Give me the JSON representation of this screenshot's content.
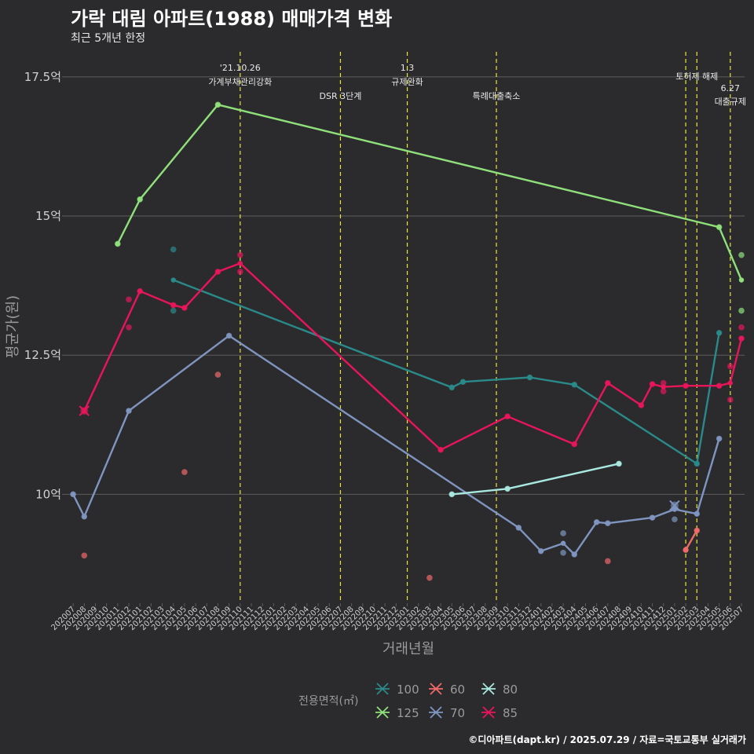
{
  "title": "가락 대림 아파트(1988) 매매가격 변화",
  "subtitle": "최근 5개년 한정",
  "caption": "©디아파트(dapt.kr) / 2025.07.29 / 자료=국토교통부 실거래가",
  "colors": {
    "background": "#2b2b2d",
    "grid": "#5c5c5c",
    "event_line": "#e8e83a",
    "100": "#2a8a8a",
    "125": "#8fe07a",
    "60": "#f06a6a",
    "70": "#7f95c0",
    "80": "#a8e8e0",
    "85": "#e8155a"
  },
  "chart_data": {
    "type": "line",
    "title": "가락 대림 아파트(1988) 매매가격 변화",
    "subtitle": "최근 5개년 한정",
    "xlabel": "거래년월",
    "ylabel": "평균가(원)",
    "ylim": [
      8.1,
      17.95
    ],
    "y_ticks": [
      {
        "value": 10,
        "label": "10억"
      },
      {
        "value": 12.5,
        "label": "12.5억"
      },
      {
        "value": 15,
        "label": "15억"
      },
      {
        "value": 17.5,
        "label": "17.5억"
      }
    ],
    "grid": true,
    "legend_title": "전용면적(㎡)",
    "legend_position": "bottom",
    "categories": [
      "202007",
      "202008",
      "202009",
      "202010",
      "202011",
      "202012",
      "202101",
      "202102",
      "202103",
      "202104",
      "202105",
      "202106",
      "202107",
      "202108",
      "202109",
      "202110",
      "202111",
      "202112",
      "202201",
      "202202",
      "202203",
      "202204",
      "202205",
      "202206",
      "202207",
      "202208",
      "202209",
      "202210",
      "202211",
      "202212",
      "202301",
      "202302",
      "202303",
      "202304",
      "202305",
      "202306",
      "202307",
      "202308",
      "202309",
      "202310",
      "202311",
      "202312",
      "202401",
      "202402",
      "202403",
      "202404",
      "202405",
      "202406",
      "202407",
      "202408",
      "202409",
      "202410",
      "202411",
      "202412",
      "202501",
      "202502",
      "202503",
      "202504",
      "202505",
      "202506",
      "202507"
    ],
    "events": [
      {
        "x": "202110",
        "lines": [
          "'21.10.26",
          "가계부채관리강화"
        ]
      },
      {
        "x": "202207",
        "lines": [
          "DSR 3단계"
        ]
      },
      {
        "x": "202301",
        "lines": [
          "1.3",
          "규제완화"
        ]
      },
      {
        "x": "202309",
        "lines": [
          "특례대출축소"
        ]
      },
      {
        "x": "202502",
        "lines": []
      },
      {
        "x": "202503",
        "lines": [
          "토허제 해제"
        ]
      },
      {
        "x": "202506",
        "lines": [
          "6.27",
          "대출규제"
        ]
      }
    ],
    "series": [
      {
        "name": "100",
        "line": [
          [
            "202104",
            13.85
          ],
          [
            "202305",
            11.92
          ],
          [
            "202306",
            12.02
          ],
          [
            "202312",
            12.1
          ],
          [
            "202404",
            11.97
          ],
          [
            "202503",
            10.55
          ],
          [
            "202505",
            12.9
          ]
        ],
        "points": [
          [
            "202104",
            14.4
          ],
          [
            "202104",
            13.3
          ],
          [
            "202305",
            11.92
          ],
          [
            "202306",
            12.02
          ],
          [
            "202312",
            12.1
          ],
          [
            "202404",
            11.97
          ],
          [
            "202503",
            10.55
          ],
          [
            "202505",
            12.9
          ]
        ],
        "cross": []
      },
      {
        "name": "125",
        "line": [
          [
            "202011",
            14.5
          ],
          [
            "202101",
            15.3
          ],
          [
            "202108",
            17.0
          ],
          [
            "202505",
            14.8
          ],
          [
            "202507",
            13.85
          ]
        ],
        "points": [
          [
            "202011",
            14.5
          ],
          [
            "202101",
            15.3
          ],
          [
            "202108",
            17.0
          ],
          [
            "202505",
            14.8
          ],
          [
            "202507",
            14.3
          ],
          [
            "202507",
            13.3
          ]
        ],
        "cross": []
      },
      {
        "name": "60",
        "line": [
          [
            "202502",
            9.0
          ],
          [
            "202503",
            9.35
          ]
        ],
        "points": [
          [
            "202008",
            8.9
          ],
          [
            "202105",
            10.4
          ],
          [
            "202108",
            12.15
          ],
          [
            "202303",
            8.5
          ],
          [
            "202407",
            8.8
          ],
          [
            "202502",
            9.0
          ],
          [
            "202503",
            9.35
          ]
        ],
        "cross": []
      },
      {
        "name": "70",
        "line": [
          [
            "202007",
            10.0
          ],
          [
            "202008",
            9.6
          ],
          [
            "202012",
            11.5
          ],
          [
            "202109",
            12.85
          ],
          [
            "202311",
            9.4
          ],
          [
            "202401",
            8.98
          ],
          [
            "202403",
            9.12
          ],
          [
            "202404",
            8.92
          ],
          [
            "202406",
            9.5
          ],
          [
            "202407",
            9.48
          ],
          [
            "202411",
            9.58
          ],
          [
            "202501",
            9.73
          ],
          [
            "202503",
            9.65
          ],
          [
            "202505",
            11.0
          ]
        ],
        "points": [
          [
            "202007",
            10.0
          ],
          [
            "202008",
            9.6
          ],
          [
            "202012",
            11.5
          ],
          [
            "202109",
            12.85
          ],
          [
            "202311",
            9.4
          ],
          [
            "202401",
            8.98
          ],
          [
            "202403",
            9.3
          ],
          [
            "202403",
            8.95
          ],
          [
            "202404",
            8.92
          ],
          [
            "202406",
            9.5
          ],
          [
            "202407",
            9.48
          ],
          [
            "202411",
            9.58
          ],
          [
            "202501",
            9.55
          ],
          [
            "202503",
            9.65
          ],
          [
            "202505",
            11.0
          ]
        ],
        "cross": [
          [
            "202501",
            9.8
          ]
        ]
      },
      {
        "name": "80",
        "line": [
          [
            "202305",
            10.0
          ],
          [
            "202310",
            10.1
          ],
          [
            "202408",
            10.55
          ]
        ],
        "points": [
          [
            "202305",
            10.0
          ],
          [
            "202310",
            10.1
          ],
          [
            "202408",
            10.55
          ]
        ],
        "cross": []
      },
      {
        "name": "85",
        "line": [
          [
            "202008",
            11.5
          ],
          [
            "202101",
            13.65
          ],
          [
            "202104",
            13.4
          ],
          [
            "202105",
            13.35
          ],
          [
            "202108",
            14.0
          ],
          [
            "202110",
            14.15
          ],
          [
            "202304",
            10.8
          ],
          [
            "202310",
            11.4
          ],
          [
            "202404",
            10.9
          ],
          [
            "202407",
            12.0
          ],
          [
            "202410",
            11.6
          ],
          [
            "202411",
            11.98
          ],
          [
            "202412",
            11.93
          ],
          [
            "202502",
            11.95
          ],
          [
            "202505",
            11.95
          ],
          [
            "202506",
            12.0
          ],
          [
            "202507",
            12.8
          ]
        ],
        "points": [
          [
            "202012",
            13.5
          ],
          [
            "202012",
            13.0
          ],
          [
            "202101",
            13.65
          ],
          [
            "202104",
            13.4
          ],
          [
            "202105",
            13.35
          ],
          [
            "202108",
            14.0
          ],
          [
            "202110",
            14.3
          ],
          [
            "202110",
            14.0
          ],
          [
            "202304",
            10.8
          ],
          [
            "202310",
            11.4
          ],
          [
            "202404",
            10.9
          ],
          [
            "202407",
            12.0
          ],
          [
            "202410",
            11.6
          ],
          [
            "202411",
            11.98
          ],
          [
            "202412",
            12.0
          ],
          [
            "202412",
            11.85
          ],
          [
            "202502",
            11.95
          ],
          [
            "202505",
            11.95
          ],
          [
            "202506",
            11.7
          ],
          [
            "202506",
            12.3
          ],
          [
            "202507",
            13.0
          ],
          [
            "202507",
            12.8
          ]
        ],
        "cross": [
          [
            "202008",
            11.5
          ]
        ]
      }
    ]
  }
}
